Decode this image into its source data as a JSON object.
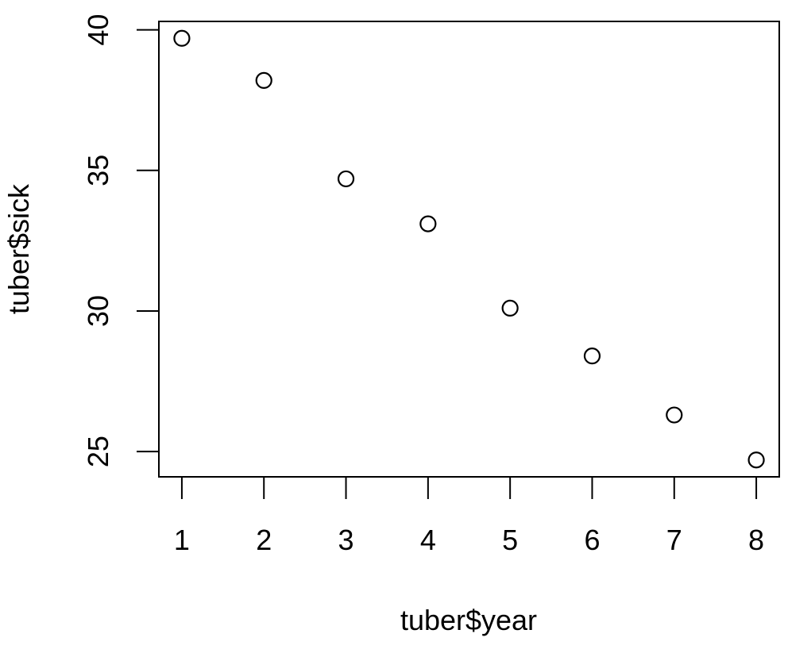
{
  "chart_data": {
    "type": "scatter",
    "xlabel": "tuber$year",
    "ylabel": "tuber$sick",
    "x_ticks": [
      1,
      2,
      3,
      4,
      5,
      6,
      7,
      8
    ],
    "y_ticks": [
      25,
      30,
      35,
      40
    ],
    "xlim": [
      0.72,
      8.28
    ],
    "ylim": [
      24.1,
      40.3
    ],
    "grid": false,
    "marker": "open-circle",
    "series": [
      {
        "x": [
          1,
          2,
          3,
          4,
          5,
          6,
          7,
          8
        ],
        "y": [
          39.7,
          38.2,
          34.7,
          33.1,
          30.1,
          28.4,
          26.3,
          24.7
        ]
      }
    ]
  }
}
